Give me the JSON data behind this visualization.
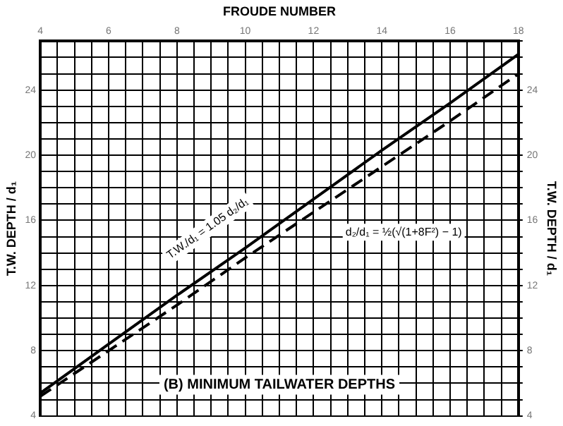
{
  "chart_data": {
    "type": "line",
    "xlabel": "FROUDE NUMBER",
    "ylabel": "T.W. DEPTH / d₁",
    "y2label": "T.W. DEPTH / d₁",
    "x": [
      4,
      6,
      8,
      10,
      12,
      14,
      16,
      18
    ],
    "series": [
      {
        "color": "#000000",
        "line_style": "solid",
        "values": [
          5.4,
          8.4,
          11.4,
          14.3,
          17.3,
          20.3,
          23.2,
          26.2
        ]
      },
      {
        "color": "#000000",
        "line_style": "dashed",
        "values": [
          5.2,
          8.0,
          10.8,
          13.7,
          16.5,
          19.3,
          22.1,
          25.0
        ]
      }
    ],
    "xlim": [
      4,
      18
    ],
    "xticks": [
      4,
      {
        "value": 4.5,
        "label": null
      },
      {
        "value": 5,
        "label": null
      },
      {
        "value": 5.5,
        "label": null
      },
      6,
      {
        "value": 6.5,
        "label": null
      },
      {
        "value": 7,
        "label": null
      },
      {
        "value": 7.5,
        "label": null
      },
      8,
      {
        "value": 8.5,
        "label": null
      },
      {
        "value": 9,
        "label": null
      },
      {
        "value": 9.5,
        "label": null
      },
      10,
      {
        "value": 10.5,
        "label": null
      },
      {
        "value": 11,
        "label": null
      },
      {
        "value": 11.5,
        "label": null
      },
      12,
      {
        "value": 12.5,
        "label": null
      },
      {
        "value": 13,
        "label": null
      },
      {
        "value": 13.5,
        "label": null
      },
      14,
      {
        "value": 14.5,
        "label": null
      },
      {
        "value": 15,
        "label": null
      },
      {
        "value": 15.5,
        "label": null
      },
      16,
      {
        "value": 16.5,
        "label": null
      },
      {
        "value": 17,
        "label": null
      },
      {
        "value": 17.5,
        "label": null
      },
      18
    ],
    "ylim": [
      4,
      27
    ],
    "yticks": [
      4,
      {
        "value": 5,
        "label": null
      },
      {
        "value": 6,
        "label": null
      },
      {
        "value": 7,
        "label": null
      },
      8,
      {
        "value": 9,
        "label": null
      },
      {
        "value": 10,
        "label": null
      },
      {
        "value": 11,
        "label": null
      },
      12,
      {
        "value": 13,
        "label": null
      },
      {
        "value": 14,
        "label": null
      },
      {
        "value": 15,
        "label": null
      },
      16,
      {
        "value": 17,
        "label": null
      },
      {
        "value": 18,
        "label": null
      },
      {
        "value": 19,
        "label": null
      },
      20,
      {
        "value": 21,
        "label": null
      },
      {
        "value": 22,
        "label": null
      },
      {
        "value": 23,
        "label": null
      },
      24,
      {
        "value": 25,
        "label": null
      },
      {
        "value": 26,
        "label": null
      },
      {
        "value": 27,
        "label": null
      }
    ],
    "y2lim": [
      4,
      27
    ],
    "y2ticks": [
      4,
      {
        "value": 5,
        "label": null
      },
      {
        "value": 6,
        "label": null
      },
      {
        "value": 7,
        "label": null
      },
      8,
      {
        "value": 9,
        "label": null
      },
      {
        "value": 10,
        "label": null
      },
      {
        "value": 11,
        "label": null
      },
      12,
      {
        "value": 13,
        "label": null
      },
      {
        "value": 14,
        "label": null
      },
      {
        "value": 15,
        "label": null
      },
      16,
      {
        "value": 17,
        "label": null
      },
      {
        "value": 18,
        "label": null
      },
      {
        "value": 19,
        "label": null
      },
      20,
      {
        "value": 21,
        "label": null
      },
      {
        "value": 22,
        "label": null
      },
      {
        "value": 23,
        "label": null
      },
      24,
      {
        "value": 25,
        "label": null
      },
      {
        "value": 26,
        "label": null
      },
      {
        "value": 27,
        "label": null
      }
    ],
    "grid": true,
    "legend": false,
    "marker": "none",
    "annotations": [
      "T.W./d₁ = 1.05 d₂/d₁",
      "d₂/d₁ = ½(√(1+8F²) − 1)",
      "(B) MINIMUM TAILWATER DEPTHS"
    ]
  }
}
